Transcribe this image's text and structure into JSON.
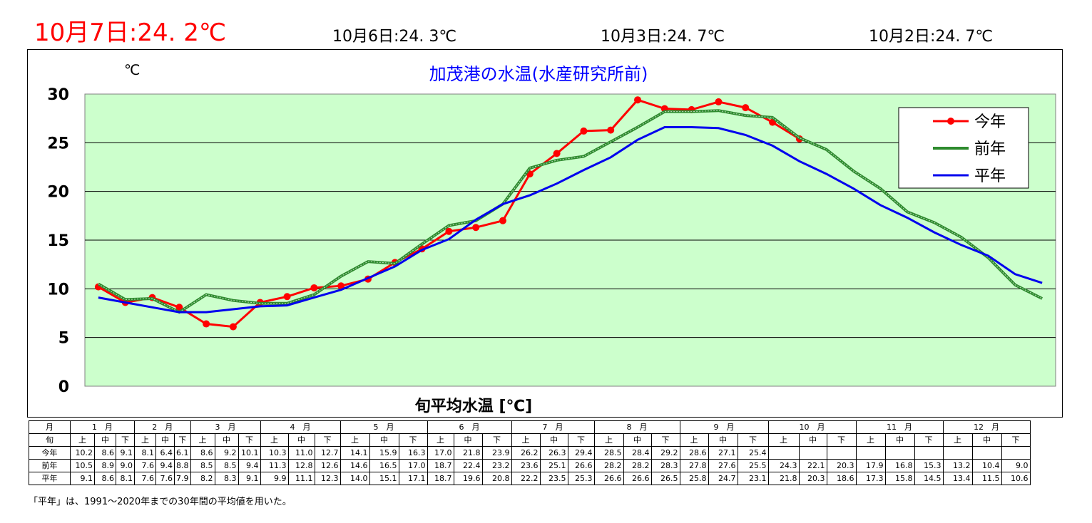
{
  "header": {
    "today": "10月7日:24. 2℃",
    "previous": [
      "10月6日:24. 3℃",
      "10月3日:24. 7℃",
      "10月2日:24. 7℃"
    ]
  },
  "chart_data": {
    "type": "line",
    "title": "加茂港の水温(水産研究所前)",
    "ylabel": "℃",
    "xlabel": "旬平均水温 [℃]",
    "ylim": [
      0,
      30
    ],
    "yticks": [
      0,
      5,
      10,
      15,
      20,
      25,
      30
    ],
    "grid": true,
    "legend_position": "top-right",
    "series": [
      {
        "name": "今年",
        "color": "#ff0000",
        "marker": "circle",
        "values": [
          10.2,
          8.6,
          9.1,
          8.1,
          6.4,
          6.1,
          8.6,
          9.2,
          10.1,
          10.3,
          11.0,
          12.7,
          14.1,
          15.9,
          16.3,
          17.0,
          21.8,
          23.9,
          26.2,
          26.3,
          29.4,
          28.5,
          28.4,
          29.2,
          28.6,
          27.1,
          25.4,
          null,
          null,
          null,
          null,
          null,
          null,
          null,
          null,
          null
        ]
      },
      {
        "name": "前年",
        "color": "#2e8b2e",
        "marker": "none",
        "values": [
          10.5,
          8.9,
          9.0,
          7.6,
          9.4,
          8.8,
          8.5,
          8.5,
          9.4,
          11.3,
          12.8,
          12.6,
          14.6,
          16.5,
          17.0,
          18.7,
          22.4,
          23.2,
          23.6,
          25.1,
          26.6,
          28.2,
          28.2,
          28.3,
          27.8,
          27.6,
          25.5,
          24.3,
          22.1,
          20.3,
          17.9,
          16.8,
          15.3,
          13.2,
          10.4,
          9.0
        ]
      },
      {
        "name": "平年",
        "color": "#0000ee",
        "marker": "none",
        "values": [
          9.1,
          8.6,
          8.1,
          7.6,
          7.6,
          7.9,
          8.2,
          8.3,
          9.1,
          9.9,
          11.1,
          12.3,
          14.0,
          15.1,
          17.1,
          18.7,
          19.6,
          20.8,
          22.2,
          23.5,
          25.3,
          26.6,
          26.6,
          26.5,
          25.8,
          24.7,
          23.1,
          21.8,
          20.3,
          18.6,
          17.3,
          15.8,
          14.5,
          13.4,
          11.5,
          10.6
        ]
      }
    ]
  },
  "table": {
    "month_header": "月",
    "junk_header": "旬",
    "months": [
      "1　月",
      "2　月",
      "3　月",
      "4　月",
      "5　月",
      "6　月",
      "7　月",
      "8　月",
      "9　月",
      "10　月",
      "11　月",
      "12　月"
    ],
    "junk_labels": [
      "上",
      "中",
      "下"
    ],
    "rows": [
      {
        "label": "今年",
        "values": [
          "10.2",
          "8.6",
          "9.1",
          "8.1",
          "6.4",
          "6.1",
          "8.6",
          "9.2",
          "10.1",
          "10.3",
          "11.0",
          "12.7",
          "14.1",
          "15.9",
          "16.3",
          "17.0",
          "21.8",
          "23.9",
          "26.2",
          "26.3",
          "29.4",
          "28.5",
          "28.4",
          "29.2",
          "28.6",
          "27.1",
          "25.4",
          "",
          "",
          "",
          "",
          "",
          "",
          "",
          "",
          ""
        ]
      },
      {
        "label": "前年",
        "values": [
          "10.5",
          "8.9",
          "9.0",
          "7.6",
          "9.4",
          "8.8",
          "8.5",
          "8.5",
          "9.4",
          "11.3",
          "12.8",
          "12.6",
          "14.6",
          "16.5",
          "17.0",
          "18.7",
          "22.4",
          "23.2",
          "23.6",
          "25.1",
          "26.6",
          "28.2",
          "28.2",
          "28.3",
          "27.8",
          "27.6",
          "25.5",
          "24.3",
          "22.1",
          "20.3",
          "17.9",
          "16.8",
          "15.3",
          "13.2",
          "10.4",
          "9.0"
        ]
      },
      {
        "label": "平年",
        "values": [
          "9.1",
          "8.6",
          "8.1",
          "7.6",
          "7.6",
          "7.9",
          "8.2",
          "8.3",
          "9.1",
          "9.9",
          "11.1",
          "12.3",
          "14.0",
          "15.1",
          "17.1",
          "18.7",
          "19.6",
          "20.8",
          "22.2",
          "23.5",
          "25.3",
          "26.6",
          "26.6",
          "26.5",
          "25.8",
          "24.7",
          "23.1",
          "21.8",
          "20.3",
          "18.6",
          "17.3",
          "15.8",
          "14.5",
          "13.4",
          "11.5",
          "10.6"
        ]
      }
    ]
  },
  "footnote": "「平年」は、1991～2020年までの30年間の平均値を用いた。"
}
